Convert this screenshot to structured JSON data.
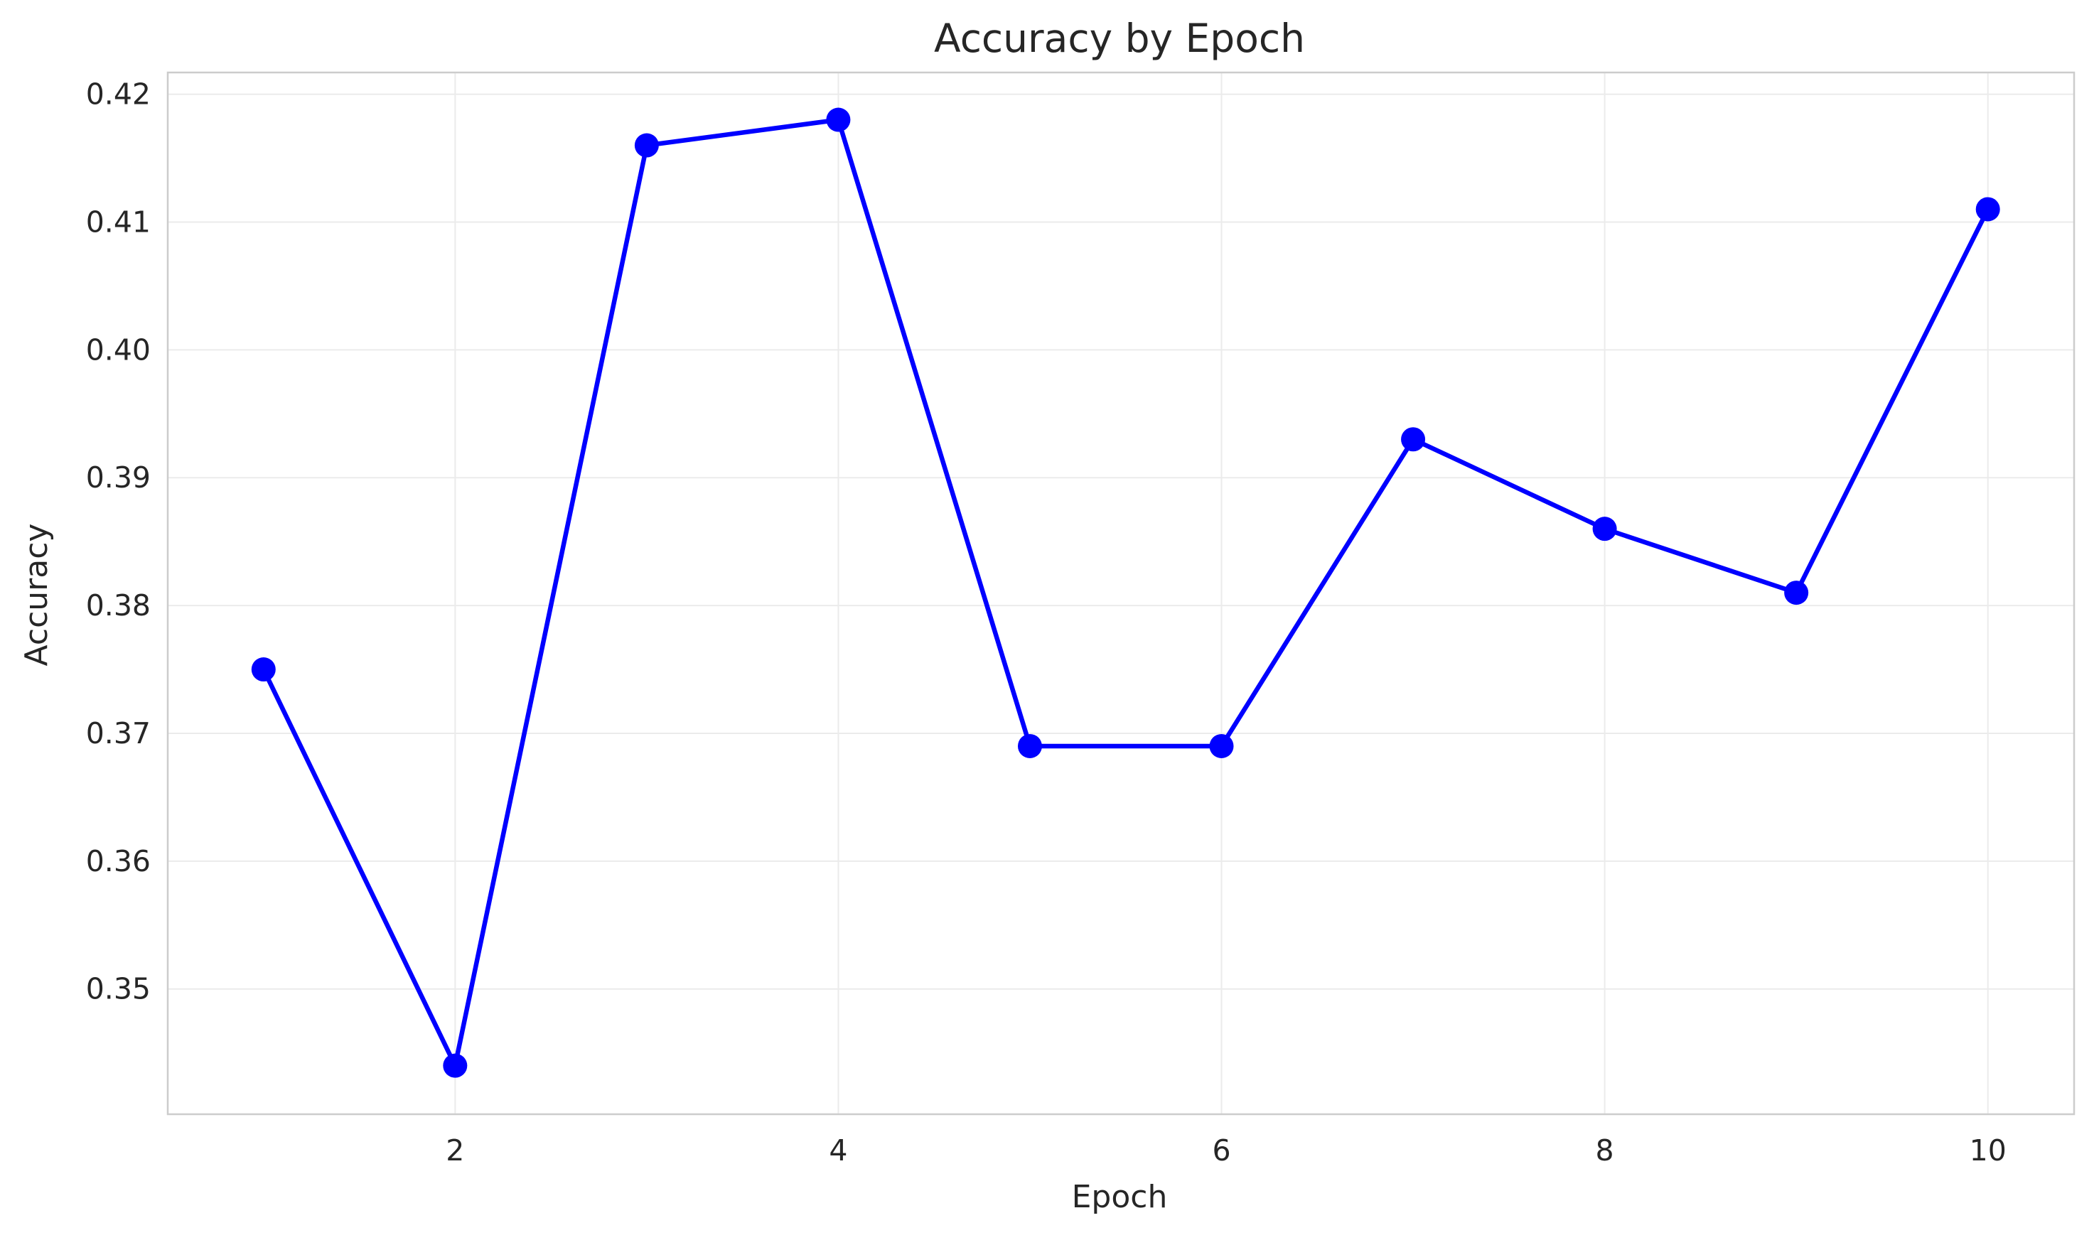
{
  "chart_data": {
    "type": "line",
    "title": "Accuracy by Epoch",
    "xlabel": "Epoch",
    "ylabel": "Accuracy",
    "xlim": [
      0.5,
      10.45
    ],
    "ylim": [
      0.3402,
      0.4217
    ],
    "x_ticks": [
      2,
      4,
      6,
      8,
      10
    ],
    "x_tick_labels": [
      "2",
      "4",
      "6",
      "8",
      "10"
    ],
    "y_ticks": [
      0.35,
      0.36,
      0.37,
      0.38,
      0.39,
      0.4,
      0.41,
      0.42
    ],
    "y_tick_labels": [
      "0.35",
      "0.36",
      "0.37",
      "0.38",
      "0.39",
      "0.40",
      "0.41",
      "0.42"
    ],
    "grid": true,
    "legend": null,
    "series": [
      {
        "color": "#0000ff",
        "marker": "circle",
        "x": [
          1,
          2,
          3,
          4,
          5,
          6,
          7,
          8,
          9,
          10
        ],
        "y": [
          0.375,
          0.344,
          0.416,
          0.418,
          0.369,
          0.369,
          0.393,
          0.386,
          0.381,
          0.411
        ]
      }
    ]
  }
}
